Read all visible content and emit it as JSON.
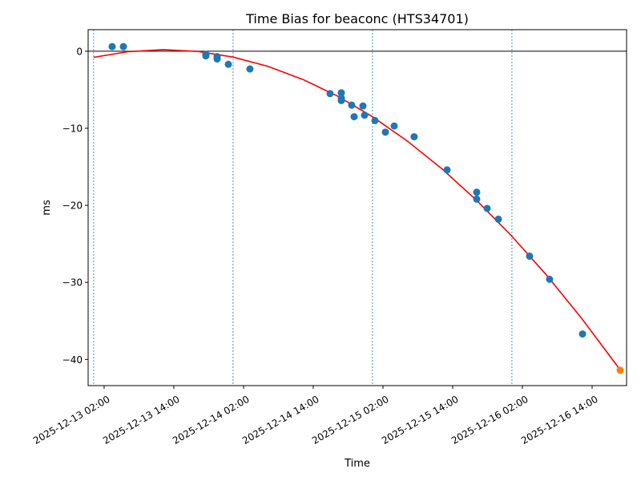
{
  "chart_data": {
    "type": "scatter",
    "title": "Time Bias for beaconc (HTS34701)",
    "xlabel": "Time",
    "ylabel": "ms",
    "xlim": [
      "2025-12-12T23:15",
      "2025-12-16T19:56"
    ],
    "ylim": [
      -43.4,
      2.8
    ],
    "xticks": [
      {
        "t": "2025-12-13T02:00",
        "label": "2025-12-13 02:00"
      },
      {
        "t": "2025-12-13T14:00",
        "label": "2025-12-13 14:00"
      },
      {
        "t": "2025-12-14T02:00",
        "label": "2025-12-14 02:00"
      },
      {
        "t": "2025-12-14T14:00",
        "label": "2025-12-14 14:00"
      },
      {
        "t": "2025-12-15T02:00",
        "label": "2025-12-15 02:00"
      },
      {
        "t": "2025-12-15T14:00",
        "label": "2025-12-15 14:00"
      },
      {
        "t": "2025-12-16T02:00",
        "label": "2025-12-16 02:00"
      },
      {
        "t": "2025-12-16T14:00",
        "label": "2025-12-16 14:00"
      }
    ],
    "yticks": [
      {
        "v": 0,
        "label": "0"
      },
      {
        "v": -10,
        "label": "−10"
      },
      {
        "v": -20,
        "label": "−20"
      },
      {
        "v": -30,
        "label": "−30"
      },
      {
        "v": -40,
        "label": "−40"
      }
    ],
    "grid": false,
    "zero_line": 0,
    "day_markers": [
      "2025-12-13T00:12",
      "2025-12-14T00:12",
      "2025-12-15T00:12",
      "2025-12-16T00:12"
    ],
    "colors": {
      "points": "#1f77b4",
      "last_point": "#ff7f0e",
      "fit": "#ff0000",
      "markers": "#1f77b4"
    },
    "points": [
      [
        "2025-12-13T03:23",
        0.6
      ],
      [
        "2025-12-13T05:19",
        0.6
      ],
      [
        "2025-12-13T19:31",
        -0.4
      ],
      [
        "2025-12-13T19:31",
        -0.6
      ],
      [
        "2025-12-13T21:27",
        -0.7
      ],
      [
        "2025-12-13T21:27",
        -1.0
      ],
      [
        "2025-12-13T23:23",
        -1.7
      ],
      [
        "2025-12-14T03:06",
        -2.3
      ],
      [
        "2025-12-14T16:54",
        -5.5
      ],
      [
        "2025-12-14T18:50",
        -5.4
      ],
      [
        "2025-12-14T18:50",
        -6.1
      ],
      [
        "2025-12-14T18:50",
        -6.4
      ],
      [
        "2025-12-14T20:37",
        -7.0
      ],
      [
        "2025-12-14T21:02",
        -8.5
      ],
      [
        "2025-12-14T22:33",
        -7.1
      ],
      [
        "2025-12-14T22:50",
        -8.3
      ],
      [
        "2025-12-15T00:37",
        -9.0
      ],
      [
        "2025-12-15T02:25",
        -10.5
      ],
      [
        "2025-12-15T03:56",
        -9.7
      ],
      [
        "2025-12-15T07:22",
        -11.1
      ],
      [
        "2025-12-15T13:02",
        -15.4
      ],
      [
        "2025-12-15T18:08",
        -18.3
      ],
      [
        "2025-12-15T18:08",
        -19.2
      ],
      [
        "2025-12-15T19:56",
        -20.4
      ],
      [
        "2025-12-15T21:52",
        -21.8
      ],
      [
        "2025-12-16T03:14",
        -26.6
      ],
      [
        "2025-12-16T06:41",
        -29.6
      ],
      [
        "2025-12-16T12:21",
        -36.7
      ]
    ],
    "last_point": [
      "2025-12-16T18:50",
      -41.4
    ],
    "fit": [
      [
        "2025-12-13T00:12",
        -0.79
      ],
      [
        "2025-12-13T06:12",
        -0.05
      ],
      [
        "2025-12-13T12:12",
        0.2
      ],
      [
        "2025-12-13T18:12",
        -0.03
      ],
      [
        "2025-12-14T00:12",
        -0.76
      ],
      [
        "2025-12-14T06:12",
        -1.96
      ],
      [
        "2025-12-14T12:12",
        -3.66
      ],
      [
        "2025-12-14T18:12",
        -5.83
      ],
      [
        "2025-12-15T00:12",
        -8.5
      ],
      [
        "2025-12-15T06:12",
        -11.66
      ],
      [
        "2025-12-15T12:12",
        -15.29
      ],
      [
        "2025-12-15T18:12",
        -19.41
      ],
      [
        "2025-12-16T00:12",
        -24.02
      ],
      [
        "2025-12-16T06:12",
        -29.1
      ],
      [
        "2025-12-16T12:12",
        -34.67
      ],
      [
        "2025-12-16T18:12",
        -40.72
      ],
      [
        "2025-12-16T18:48",
        -41.4
      ]
    ]
  }
}
